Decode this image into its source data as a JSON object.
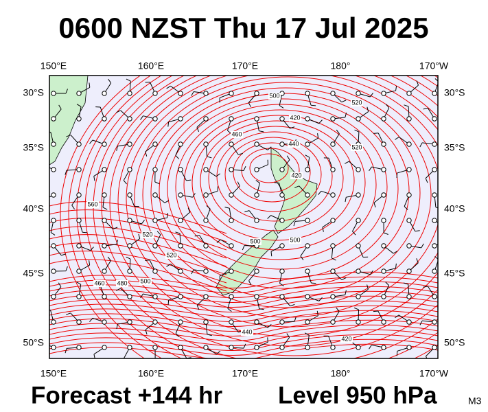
{
  "header": {
    "title": "0600 NZST Thu 17 Jul 2025"
  },
  "map": {
    "lon_labels": [
      "150°E",
      "160°E",
      "170°E",
      "180°",
      "170°W"
    ],
    "lat_labels": [
      "30°S",
      "35°S",
      "40°S",
      "45°S",
      "50°S"
    ],
    "contour_labels": [
      500,
      460,
      440,
      420,
      420,
      520,
      560,
      520,
      500,
      500,
      480,
      460,
      440,
      420,
      500,
      520,
      520
    ]
  },
  "footer": {
    "forecast": "Forecast +144 hr",
    "level": "Level 950 hPa",
    "code": "M3"
  }
}
